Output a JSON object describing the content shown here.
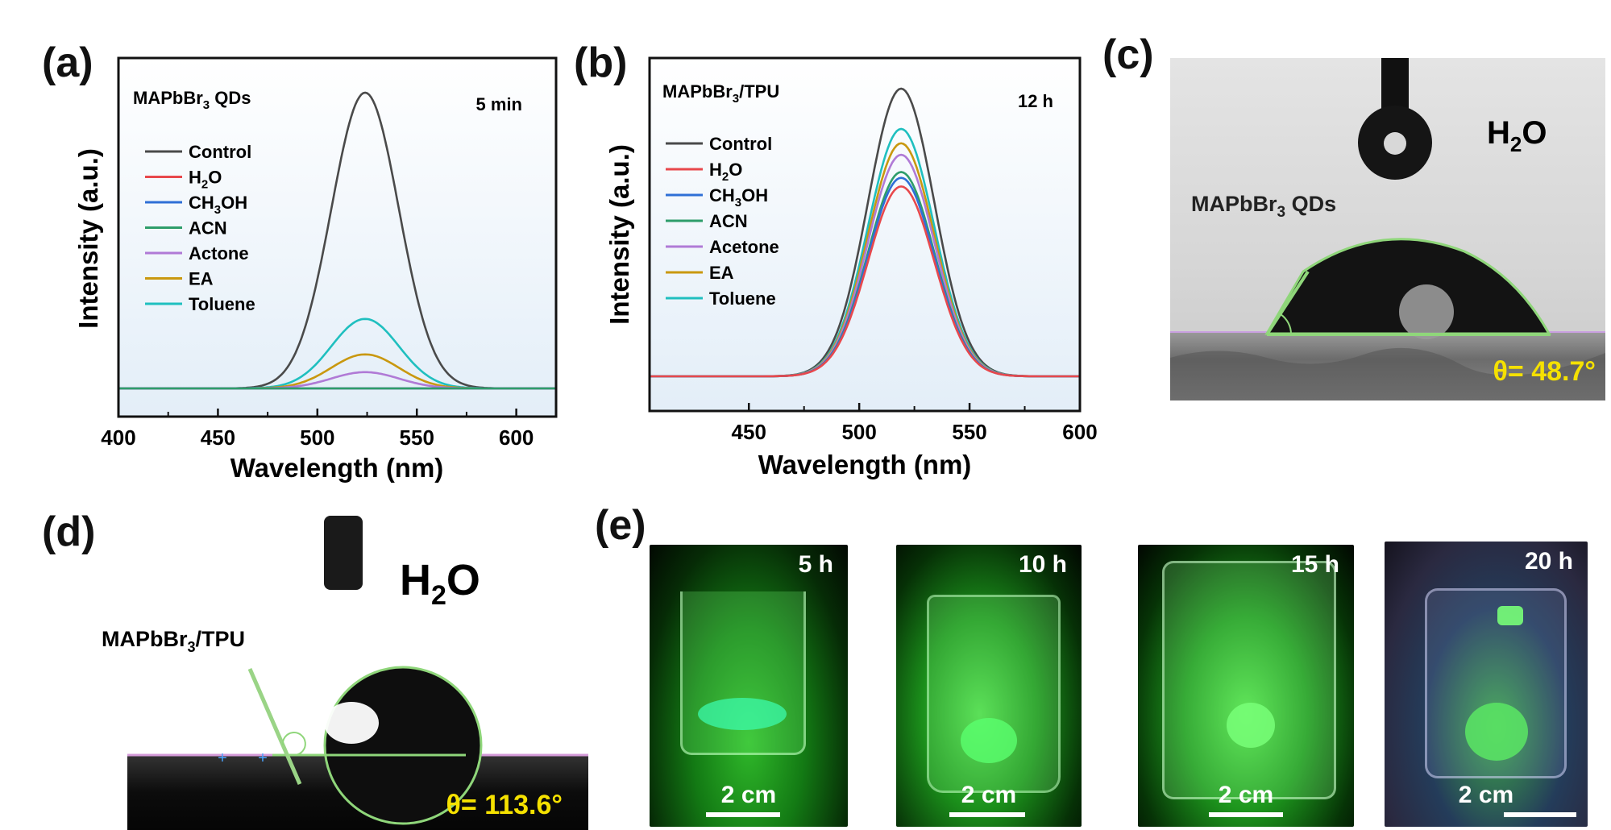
{
  "panels": {
    "a": "(a)",
    "b": "(b)",
    "c": "(c)",
    "d": "(d)",
    "e": "(e)"
  },
  "colors": {
    "Control": "#4a4a4a",
    "H2O": "#e8484c",
    "CH3OH": "#2f6fd6",
    "ACN": "#2e9d6a",
    "Actone": "#b07ad6",
    "Acetone": "#b07ad6",
    "EA": "#c9980f",
    "Toluene": "#1fbfbf",
    "accent_yellow": "#f5e100",
    "fit_green": "#8fd67a"
  },
  "chart_data": [
    {
      "type": "line",
      "id": "a",
      "title": "MAPbBr3 QDs",
      "time_label": "5 min",
      "xlabel": "Wavelength (nm)",
      "ylabel": "Intensity (a.u.)",
      "xlim": [
        400,
        620
      ],
      "ylim": [
        0,
        1.1
      ],
      "xticks": [
        "400",
        "450",
        "500",
        "550",
        "600"
      ],
      "peak_center": 524,
      "series": [
        {
          "name": "Control",
          "label_main": "Control",
          "label_sub": "",
          "label_tail": "",
          "peak": 1.0,
          "width": 17
        },
        {
          "name": "H2O",
          "label_main": "H",
          "label_sub": "2",
          "label_tail": "O",
          "peak": 0.0,
          "width": 17
        },
        {
          "name": "CH3OH",
          "label_main": "CH",
          "label_sub": "3",
          "label_tail": "OH",
          "peak": 0.0,
          "width": 17
        },
        {
          "name": "ACN",
          "label_main": "ACN",
          "label_sub": "",
          "label_tail": "",
          "peak": 0.0,
          "width": 17
        },
        {
          "name": "Actone",
          "label_main": "Actone",
          "label_sub": "",
          "label_tail": "",
          "peak": 0.055,
          "width": 17
        },
        {
          "name": "EA",
          "label_main": "EA",
          "label_sub": "",
          "label_tail": "",
          "peak": 0.115,
          "width": 17
        },
        {
          "name": "Toluene",
          "label_main": "Toluene",
          "label_sub": "",
          "label_tail": "",
          "peak": 0.235,
          "width": 17
        }
      ]
    },
    {
      "type": "line",
      "id": "b",
      "title": "MAPbBr3/TPU",
      "time_label": "12 h",
      "xlabel": "Wavelength (nm)",
      "ylabel": "Intensity (a.u.)",
      "xlim": [
        405,
        600
      ],
      "ylim": [
        0,
        1.1
      ],
      "xticks": [
        "450",
        "500",
        "550",
        "600"
      ],
      "peak_center": 519,
      "series": [
        {
          "name": "Control",
          "label_main": "Control",
          "label_sub": "",
          "label_tail": "",
          "peak": 1.0,
          "width": 15
        },
        {
          "name": "H2O",
          "label_main": "H",
          "label_sub": "2",
          "label_tail": "O",
          "peak": 0.66,
          "width": 15
        },
        {
          "name": "CH3OH",
          "label_main": "CH",
          "label_sub": "3",
          "label_tail": "OH",
          "peak": 0.69,
          "width": 15
        },
        {
          "name": "ACN",
          "label_main": "ACN",
          "label_sub": "",
          "label_tail": "",
          "peak": 0.71,
          "width": 15
        },
        {
          "name": "Acetone",
          "label_main": "Acetone",
          "label_sub": "",
          "label_tail": "",
          "peak": 0.77,
          "width": 15
        },
        {
          "name": "EA",
          "label_main": "EA",
          "label_sub": "",
          "label_tail": "",
          "peak": 0.81,
          "width": 15
        },
        {
          "name": "Toluene",
          "label_main": "Toluene",
          "label_sub": "",
          "label_tail": "",
          "peak": 0.86,
          "width": 15
        }
      ]
    }
  ],
  "panel_c": {
    "liquid": "H2O",
    "sample": "MAPbBr3 QDs",
    "angle": "θ= 48.7°",
    "angle_deg": 48.7
  },
  "panel_d": {
    "liquid": "H2O",
    "sample": "MAPbBr3/TPU",
    "angle": "θ= 113.6°",
    "angle_deg": 113.6
  },
  "panel_e": {
    "photos": [
      {
        "time": "5 h",
        "scale": "2 cm"
      },
      {
        "time": "10 h",
        "scale": "2 cm"
      },
      {
        "time": "15 h",
        "scale": "2 cm"
      },
      {
        "time": "20 h",
        "scale": "2 cm"
      }
    ]
  }
}
